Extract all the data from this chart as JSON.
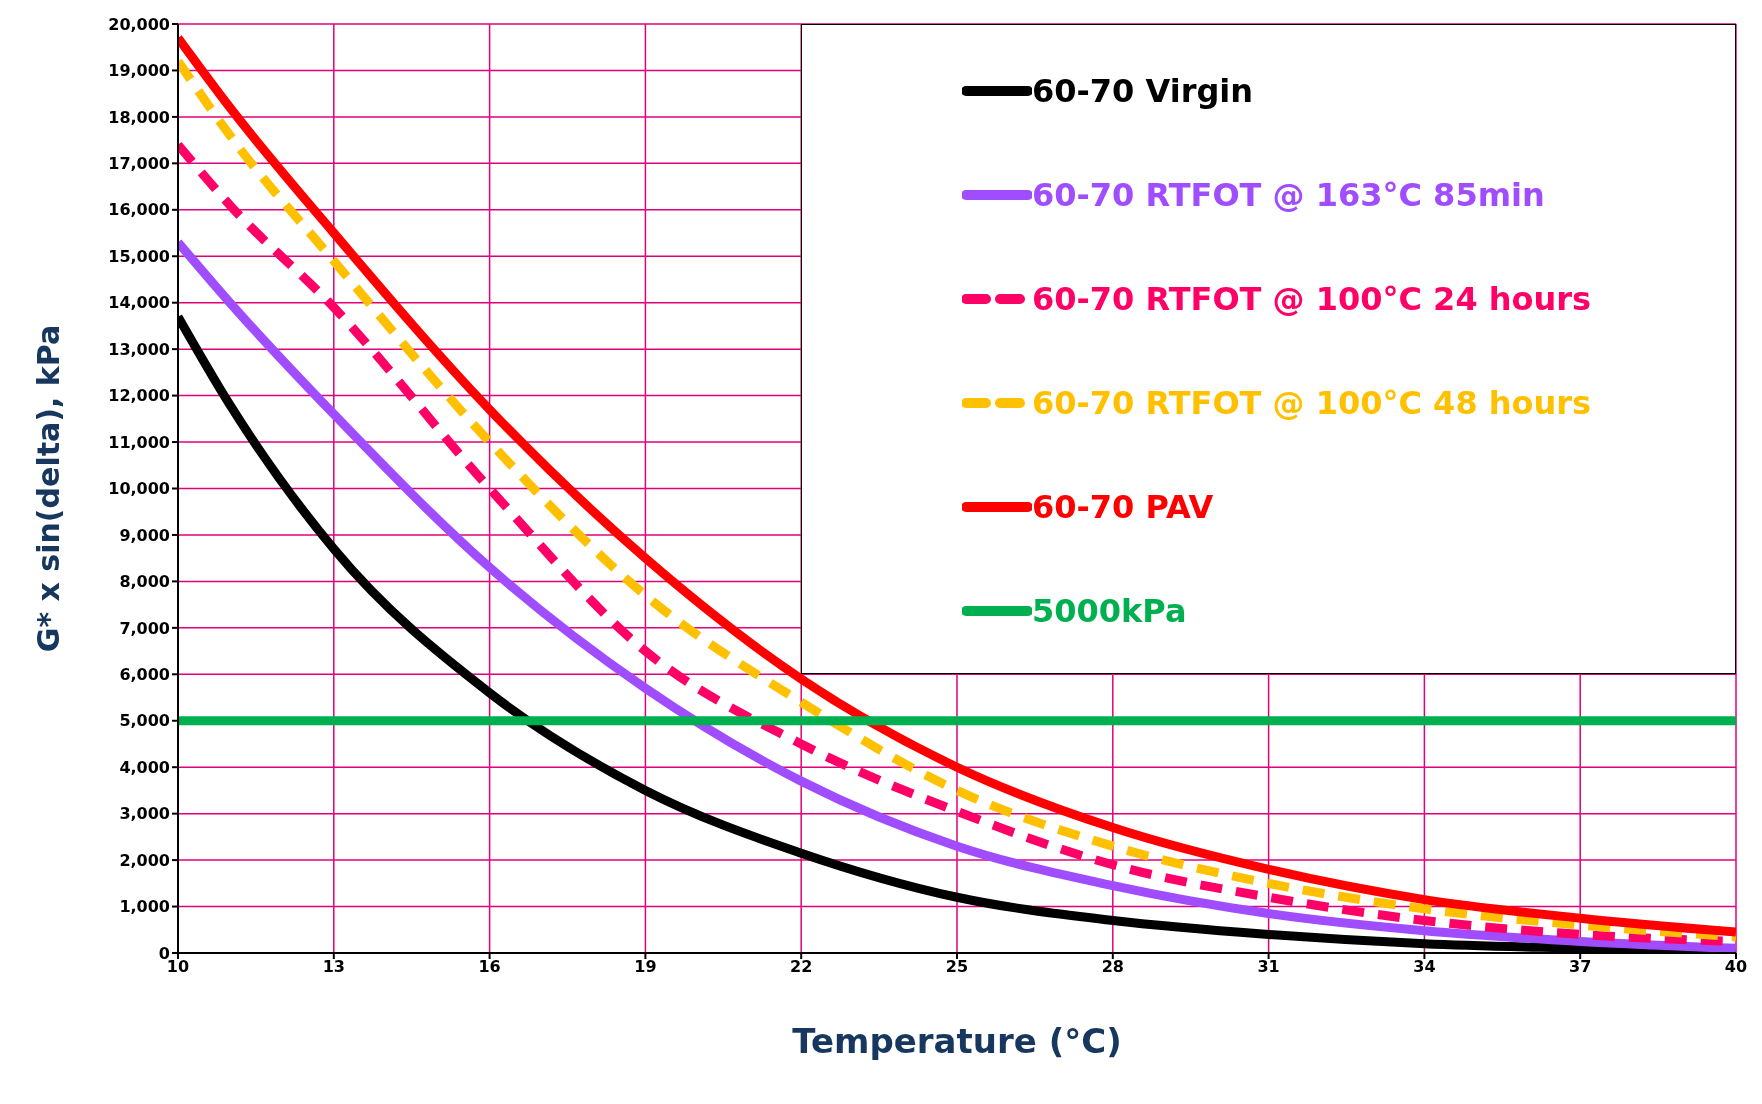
{
  "chart_data": {
    "type": "line",
    "xlabel": "Temperature (°C)",
    "ylabel": "G* x sin(delta), kPa",
    "x": [
      10,
      11,
      13,
      16,
      19,
      22,
      25,
      28,
      31,
      34,
      37,
      40
    ],
    "series": [
      {
        "name": "60-70 Virgin",
        "color": "#000000",
        "line_style": "solid",
        "values": [
          13700,
          11800,
          8700,
          5600,
          3500,
          2150,
          1200,
          700,
          400,
          200,
          100,
          20
        ]
      },
      {
        "name": "60-70 RTFOT @ 163°C 85min",
        "color": "#a04cff",
        "line_style": "solid",
        "values": [
          15300,
          14000,
          11600,
          8300,
          5700,
          3700,
          2300,
          1450,
          850,
          480,
          250,
          100
        ]
      },
      {
        "name": "60-70 RTFOT @ 100°C 24 hours",
        "color": "#ff0066",
        "line_style": "dashed",
        "values": [
          17400,
          16100,
          13900,
          10000,
          6500,
          4500,
          3050,
          1900,
          1200,
          700,
          400,
          250
        ]
      },
      {
        "name": "60-70 RTFOT @ 100°C 48 hours",
        "color": "#ffc000",
        "line_style": "dashed",
        "values": [
          19200,
          17600,
          14900,
          11000,
          7700,
          5400,
          3500,
          2300,
          1500,
          950,
          600,
          350
        ]
      },
      {
        "name": "60-70 PAV",
        "color": "#ff0000",
        "line_style": "solid",
        "values": [
          19700,
          18200,
          15500,
          11700,
          8500,
          5900,
          4000,
          2700,
          1800,
          1150,
          750,
          450
        ]
      },
      {
        "name": "5000kPa",
        "color": "#00b050",
        "line_style": "solid",
        "values": [
          5000,
          5000,
          5000,
          5000,
          5000,
          5000,
          5000,
          5000,
          5000,
          5000,
          5000,
          5000
        ]
      }
    ],
    "xlim": [
      10,
      40
    ],
    "xticks": [
      10,
      13,
      16,
      19,
      22,
      25,
      28,
      31,
      34,
      37,
      40
    ],
    "ylim": [
      0,
      20000
    ],
    "yticks": [
      0,
      {
        "value": 1000,
        "label": "1,000"
      },
      {
        "value": 2000,
        "label": "2,000"
      },
      {
        "value": 3000,
        "label": "3,000"
      },
      {
        "value": 4000,
        "label": "4,000"
      },
      {
        "value": 5000,
        "label": "5,000"
      },
      {
        "value": 6000,
        "label": "6,000"
      },
      {
        "value": 7000,
        "label": "7,000"
      },
      {
        "value": 8000,
        "label": "8,000"
      },
      {
        "value": 9000,
        "label": "9,000"
      },
      {
        "value": 10000,
        "label": "10,000"
      },
      {
        "value": 11000,
        "label": "11,000"
      },
      {
        "value": 12000,
        "label": "12,000"
      },
      {
        "value": 13000,
        "label": "13,000"
      },
      {
        "value": 14000,
        "label": "14,000"
      },
      {
        "value": 15000,
        "label": "15,000"
      },
      {
        "value": 16000,
        "label": "16,000"
      },
      {
        "value": 17000,
        "label": "17,000"
      },
      {
        "value": 18000,
        "label": "18,000"
      },
      {
        "value": 19000,
        "label": "19,000"
      },
      {
        "value": 20000,
        "label": "20,000"
      }
    ],
    "grid": true,
    "legend": "top right",
    "marker": "none"
  }
}
